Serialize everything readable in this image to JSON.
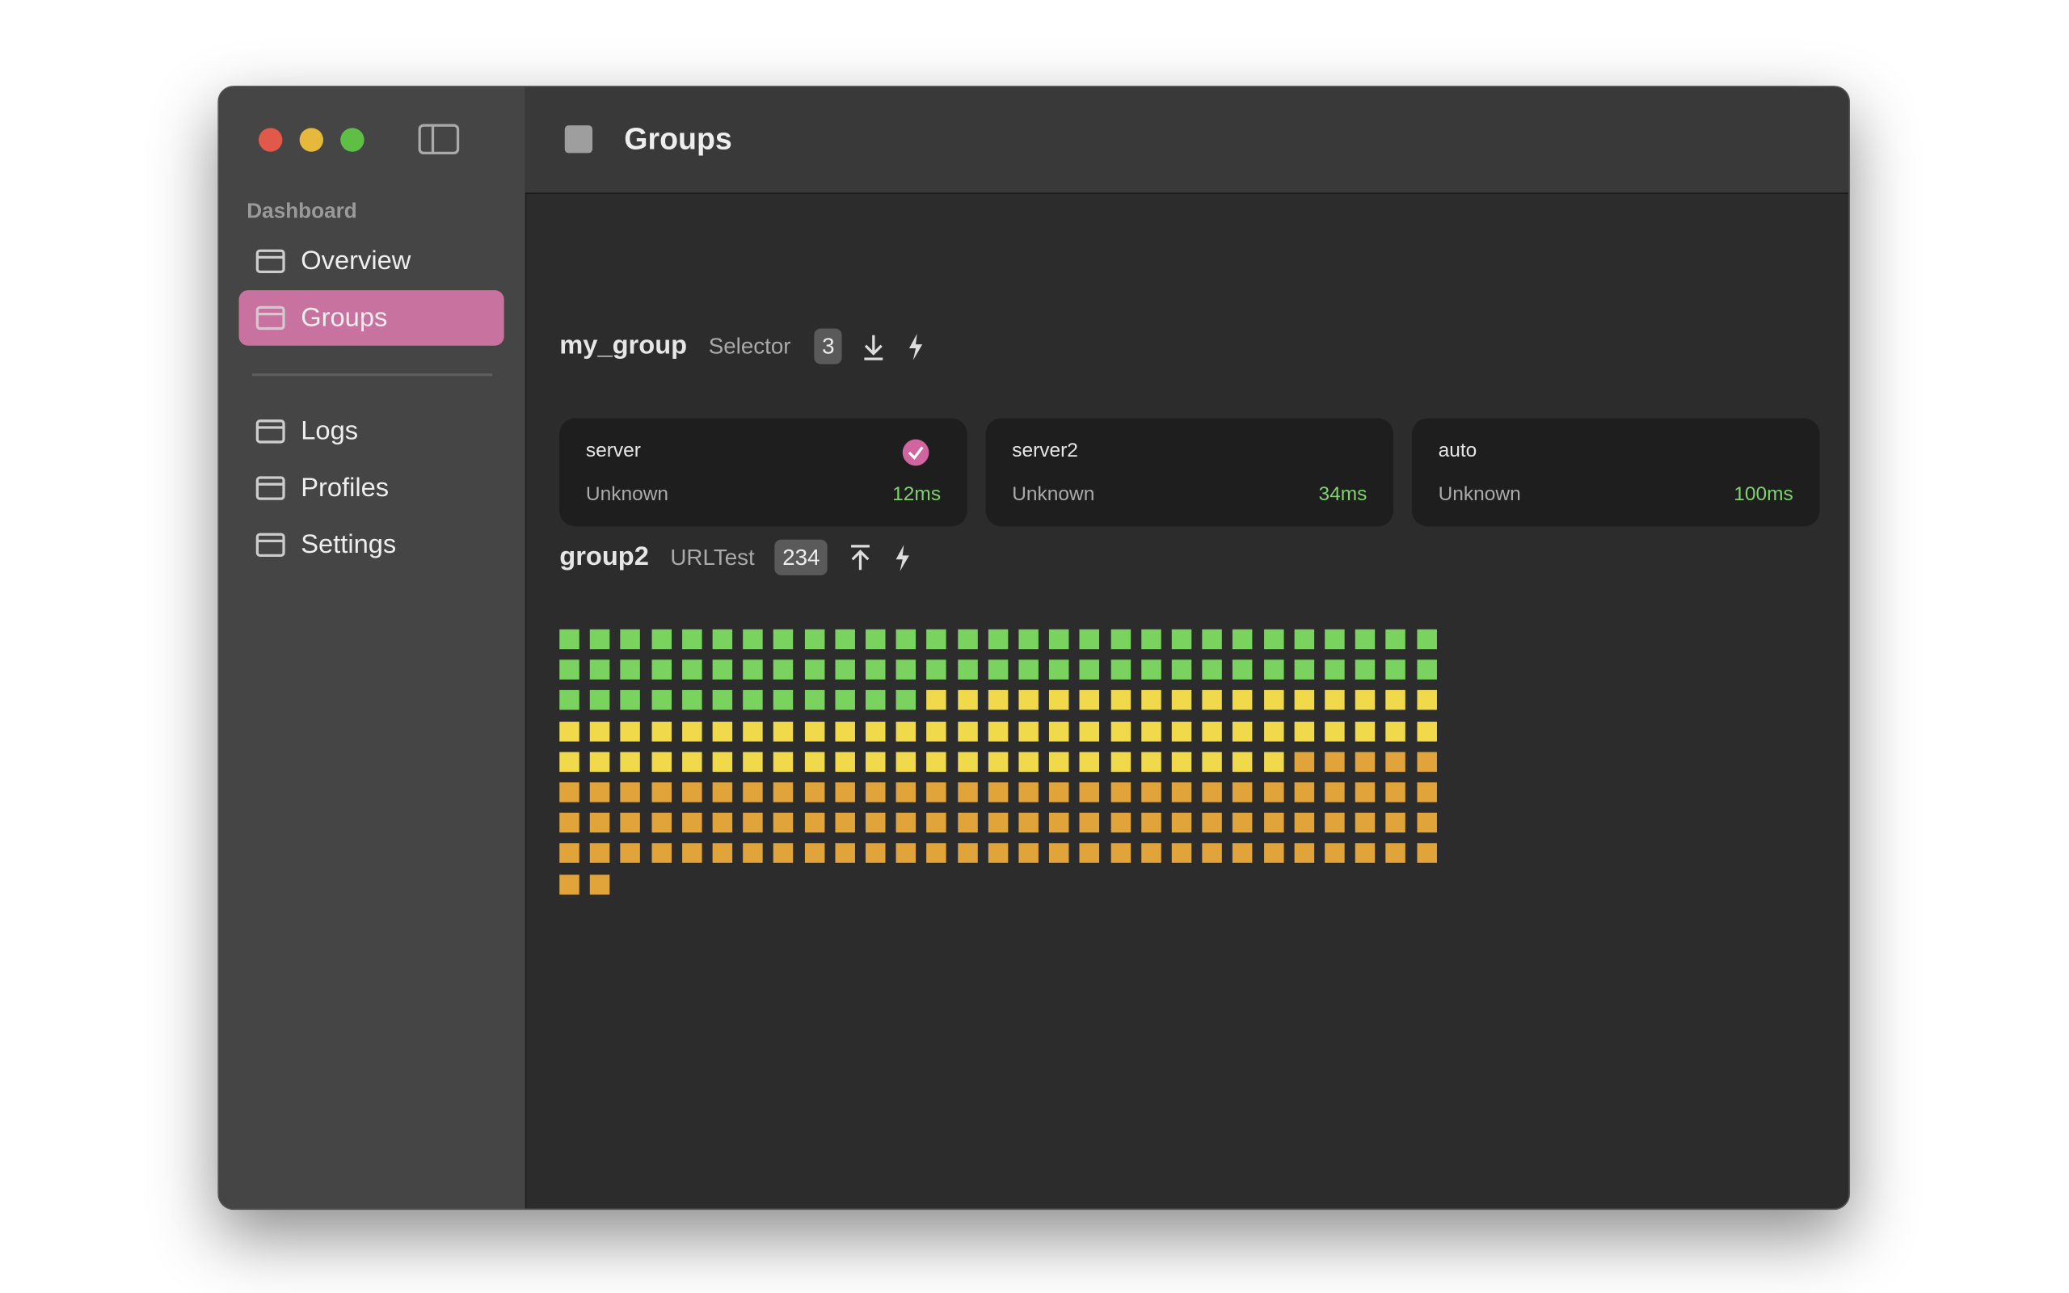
{
  "sidebar": {
    "section": "Dashboard",
    "items": [
      "Overview",
      "Groups",
      "Logs",
      "Profiles",
      "Settings"
    ],
    "selected": 1
  },
  "header": {
    "title": "Groups"
  },
  "groups": [
    {
      "name": "my_group",
      "type": "Selector",
      "count": "3",
      "outbounds": [
        {
          "name": "server",
          "status": "Unknown",
          "latency": "12ms",
          "selected": true
        },
        {
          "name": "server2",
          "status": "Unknown",
          "latency": "34ms",
          "selected": false
        },
        {
          "name": "auto",
          "status": "Unknown",
          "latency": "100ms",
          "selected": false
        }
      ]
    },
    {
      "name": "group2",
      "type": "URLTest",
      "count": "234",
      "nodes": [
        "#7ad35f",
        "#7ad35f",
        "#7ad35f",
        "#7ad35f",
        "#7ad35f",
        "#7ad35f",
        "#7ad35f",
        "#7ad35f",
        "#7ad35f",
        "#7ad35f",
        "#7ad35f",
        "#7ad35f",
        "#7ad35f",
        "#7ad35f",
        "#7ad35f",
        "#7ad35f",
        "#7ad35f",
        "#7ad35f",
        "#7ad35f",
        "#7ad35f",
        "#7ad35f",
        "#7ad35f",
        "#7ad35f",
        "#7ad35f",
        "#7ad35f",
        "#7ad35f",
        "#7ad35f",
        "#7ad35f",
        "#7ad35f",
        "#7ad35f",
        "#7ad35f",
        "#7ad35f",
        "#7ad35f",
        "#7ad35f",
        "#7ad35f",
        "#7ad35f",
        "#7ad35f",
        "#7ad35f",
        "#7ad35f",
        "#7ad35f",
        "#7ad35f",
        "#7ad35f",
        "#7ad35f",
        "#7ad35f",
        "#7ad35f",
        "#7ad35f",
        "#7ad35f",
        "#7ad35f",
        "#7ad35f",
        "#7ad35f",
        "#7ad35f",
        "#7ad35f",
        "#7ad35f",
        "#7ad35f",
        "#7ad35f",
        "#7ad35f",
        "#7ad35f",
        "#7ad35f",
        "#7ad35f",
        "#7ad35f",
        "#7ad35f",
        "#7ad35f",
        "#7ad35f",
        "#7ad35f",
        "#7ad35f",
        "#7ad35f",
        "#7ad35f",
        "#7ad35f",
        "#7ad35f",
        "#7ad35f",
        "#f0d94a",
        "#f0d94a",
        "#f0d94a",
        "#f0d94a",
        "#f0d94a",
        "#f0d94a",
        "#f0d94a",
        "#f0d94a",
        "#f0d94a",
        "#f0d94a",
        "#f0d94a",
        "#f0d94a",
        "#f0d94a",
        "#f0d94a",
        "#f0d94a",
        "#f0d94a",
        "#f0d94a",
        "#f0d94a",
        "#f0d94a",
        "#f0d94a",
        "#f0d94a",
        "#f0d94a",
        "#f0d94a",
        "#f0d94a",
        "#f0d94a",
        "#f0d94a",
        "#f0d94a",
        "#f0d94a",
        "#f0d94a",
        "#f0d94a",
        "#f0d94a",
        "#f0d94a",
        "#f0d94a",
        "#f0d94a",
        "#f0d94a",
        "#f0d94a",
        "#f0d94a",
        "#f0d94a",
        "#f0d94a",
        "#f0d94a",
        "#f0d94a",
        "#f0d94a",
        "#f0d94a",
        "#f0d94a",
        "#f0d94a",
        "#f0d94a",
        "#f0d94a",
        "#f0d94a",
        "#f0d94a",
        "#f0d94a",
        "#f0d94a",
        "#f0d94a",
        "#f0d94a",
        "#f0d94a",
        "#f0d94a",
        "#f0d94a",
        "#f0d94a",
        "#f0d94a",
        "#f0d94a",
        "#f0d94a",
        "#f0d94a",
        "#f0d94a",
        "#f0d94a",
        "#f0d94a",
        "#f0d94a",
        "#f0d94a",
        "#f0d94a",
        "#f0d94a",
        "#f0d94a",
        "#f0d94a",
        "#e0a43b",
        "#e0a43b",
        "#e0a43b",
        "#e0a43b",
        "#e0a43b",
        "#e0a43b",
        "#e0a43b",
        "#e0a43b",
        "#e0a43b",
        "#e0a43b",
        "#e0a43b",
        "#e0a43b",
        "#e0a43b",
        "#e0a43b",
        "#e0a43b",
        "#e0a43b",
        "#e0a43b",
        "#e0a43b",
        "#e0a43b",
        "#e0a43b",
        "#e0a43b",
        "#e0a43b",
        "#e0a43b",
        "#e0a43b",
        "#e0a43b",
        "#e0a43b",
        "#e0a43b",
        "#e0a43b",
        "#e0a43b",
        "#e0a43b",
        "#e0a43b",
        "#e0a43b",
        "#e0a43b",
        "#e0a43b",
        "#e0a43b",
        "#e0a43b",
        "#e0a43b",
        "#e0a43b",
        "#e0a43b",
        "#e0a43b",
        "#e0a43b",
        "#e0a43b",
        "#e0a43b",
        "#e0a43b",
        "#e0a43b",
        "#e0a43b",
        "#e0a43b",
        "#e0a43b",
        "#e0a43b",
        "#e0a43b",
        "#e0a43b",
        "#e0a43b",
        "#e0a43b",
        "#e0a43b",
        "#e0a43b",
        "#e0a43b",
        "#e0a43b",
        "#e0a43b",
        "#e0a43b",
        "#e0a43b",
        "#e0a43b",
        "#e0a43b",
        "#e0a43b",
        "#e0a43b",
        "#e0a43b",
        "#e0a43b",
        "#e0a43b",
        "#e0a43b",
        "#e0a43b",
        "#e0a43b",
        "#e0a43b",
        "#e0a43b",
        "#e0a43b",
        "#e0a43b",
        "#e0a43b",
        "#e0a43b",
        "#e0a43b",
        "#e0a43b",
        "#e0a43b",
        "#e0a43b",
        "#e0a43b",
        "#e0a43b",
        "#e0a43b",
        "#e0a43b",
        "#e0a43b",
        "#e0a43b",
        "#e0a43b",
        "#e0a43b",
        "#e0a43b",
        "#e0a43b",
        "#e0a43b",
        "#e0a43b",
        "#e0a43b",
        "#e0a43b"
      ]
    }
  ]
}
